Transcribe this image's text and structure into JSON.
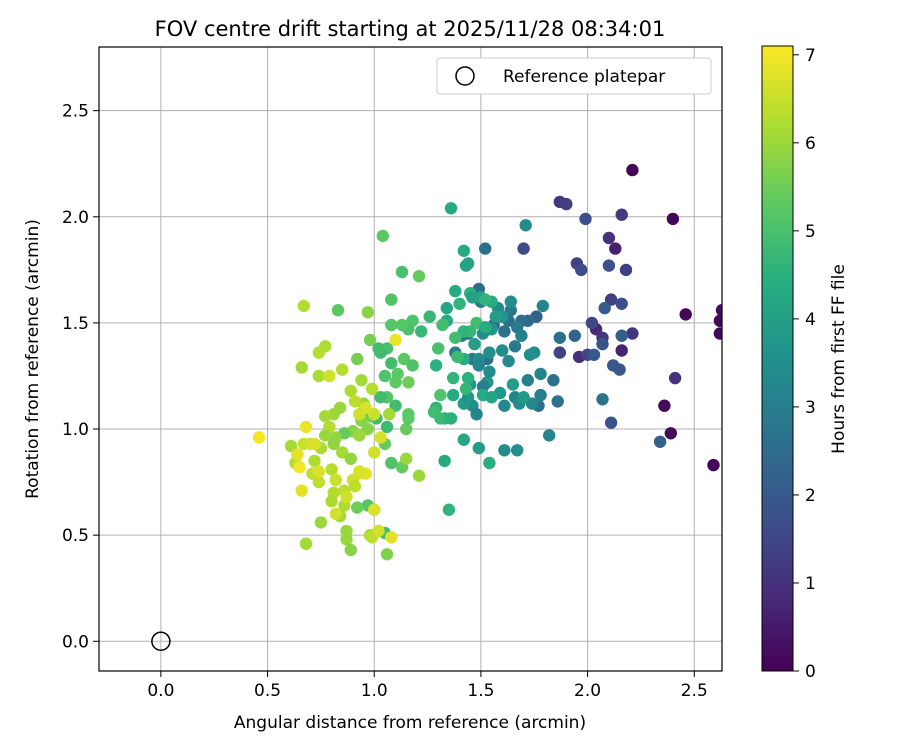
{
  "chart_data": {
    "type": "scatter",
    "title": "FOV centre drift starting at 2025/11/28 08:34:01",
    "xlabel": "Angular distance from reference (arcmin)",
    "ylabel": "Rotation from reference (arcmin)",
    "xlim": [
      -0.29,
      2.63
    ],
    "ylim": [
      -0.14,
      2.8
    ],
    "xticks": [
      "0.0",
      "0.5",
      "1.0",
      "1.5",
      "2.0",
      "2.5"
    ],
    "yticks": [
      "0.0",
      "0.5",
      "1.0",
      "1.5",
      "2.0",
      "2.5"
    ],
    "grid": true,
    "legend": {
      "position": "top-right",
      "entries": [
        "Reference platepar"
      ]
    },
    "colorbar": {
      "label": "Hours from first FF file",
      "colormap": "viridis",
      "range": [
        0,
        7.1
      ],
      "ticks": [
        "0",
        "1",
        "2",
        "3",
        "4",
        "5",
        "6",
        "7"
      ]
    },
    "reference": {
      "x": 0.0,
      "y": 0.0
    },
    "points": [
      [
        2.21,
        2.22,
        0.1
      ],
      [
        2.4,
        1.99,
        0.1
      ],
      [
        2.46,
        1.54,
        0.1
      ],
      [
        2.62,
        1.51,
        0.1
      ],
      [
        2.62,
        1.45,
        0.1
      ],
      [
        2.59,
        0.83,
        0.1
      ],
      [
        2.36,
        1.11,
        0.2
      ],
      [
        2.39,
        0.98,
        0.2
      ],
      [
        2.63,
        1.56,
        0.2
      ],
      [
        2.13,
        1.85,
        0.6
      ],
      [
        2.16,
        1.37,
        0.7
      ],
      [
        2.04,
        1.47,
        0.8
      ],
      [
        1.96,
        1.34,
        0.9
      ],
      [
        2.41,
        1.24,
        1.0
      ],
      [
        2.1,
        1.9,
        1.0
      ],
      [
        1.87,
        2.07,
        1.1
      ],
      [
        2.16,
        2.01,
        1.2
      ],
      [
        2.07,
        1.43,
        1.1
      ],
      [
        2.18,
        1.75,
        1.3
      ],
      [
        2.11,
        1.61,
        1.3
      ],
      [
        1.9,
        2.06,
        1.3
      ],
      [
        1.95,
        1.78,
        1.4
      ],
      [
        1.87,
        1.36,
        1.4
      ],
      [
        2.02,
        1.5,
        1.5
      ],
      [
        2.0,
        1.35,
        1.5
      ],
      [
        1.97,
        1.75,
        1.6
      ],
      [
        1.99,
        1.99,
        1.7
      ],
      [
        2.07,
        1.4,
        1.8
      ],
      [
        2.1,
        1.77,
        1.8
      ],
      [
        2.21,
        1.45,
        1.1
      ],
      [
        2.16,
        1.59,
        1.7
      ],
      [
        2.12,
        1.3,
        1.9
      ],
      [
        2.15,
        1.28,
        1.9
      ],
      [
        2.11,
        1.03,
        1.8
      ],
      [
        2.34,
        0.94,
        2.2
      ],
      [
        2.03,
        1.35,
        2.0
      ],
      [
        2.16,
        1.44,
        2.1
      ],
      [
        2.08,
        1.57,
        2.0
      ],
      [
        1.94,
        1.44,
        2.3
      ],
      [
        1.87,
        1.43,
        2.6
      ],
      [
        1.84,
        1.23,
        2.6
      ],
      [
        1.86,
        1.13,
        2.7
      ],
      [
        1.77,
        1.11,
        2.6
      ],
      [
        1.7,
        1.85,
        1.6
      ],
      [
        1.76,
        1.53,
        2.2
      ],
      [
        1.72,
        1.51,
        2.4
      ],
      [
        1.69,
        1.51,
        2.6
      ],
      [
        2.07,
        1.14,
        2.7
      ],
      [
        1.82,
        0.97,
        3.2
      ],
      [
        1.78,
        1.16,
        3.0
      ],
      [
        1.74,
        1.12,
        3.3
      ],
      [
        1.72,
        1.23,
        3.1
      ],
      [
        1.78,
        1.26,
        3.2
      ],
      [
        1.66,
        1.39,
        2.9
      ],
      [
        1.63,
        1.51,
        2.6
      ],
      [
        1.61,
        1.46,
        2.6
      ],
      [
        1.56,
        1.49,
        2.5
      ],
      [
        1.53,
        1.33,
        2.6
      ],
      [
        1.5,
        1.6,
        2.9
      ],
      [
        1.49,
        1.66,
        2.5
      ],
      [
        1.44,
        1.45,
        2.4
      ],
      [
        1.46,
        1.33,
        2.8
      ],
      [
        1.41,
        1.44,
        2.9
      ],
      [
        1.38,
        1.36,
        3.0
      ],
      [
        1.52,
        1.85,
        2.6
      ],
      [
        1.64,
        1.56,
        2.8
      ],
      [
        1.67,
        1.48,
        2.9
      ],
      [
        1.69,
        1.44,
        3.1
      ],
      [
        1.73,
        1.35,
        3.4
      ],
      [
        1.75,
        1.36,
        3.5
      ],
      [
        1.79,
        1.58,
        3.2
      ],
      [
        1.71,
        1.96,
        3.4
      ],
      [
        1.64,
        1.6,
        3.4
      ],
      [
        1.58,
        1.57,
        3.4
      ],
      [
        1.55,
        1.47,
        3.7
      ],
      [
        1.51,
        1.45,
        3.4
      ],
      [
        1.49,
        1.33,
        3.5
      ],
      [
        1.45,
        1.21,
        3.6
      ],
      [
        1.46,
        1.11,
        3.5
      ],
      [
        1.42,
        1.12,
        3.8
      ],
      [
        1.53,
        1.22,
        3.6
      ],
      [
        1.54,
        1.27,
        3.4
      ],
      [
        1.59,
        1.17,
        3.7
      ],
      [
        1.61,
        1.11,
        3.3
      ],
      [
        1.66,
        1.15,
        3.2
      ],
      [
        1.68,
        1.12,
        3.4
      ],
      [
        1.7,
        1.15,
        3.8
      ],
      [
        1.65,
        1.21,
        3.9
      ],
      [
        1.63,
        1.32,
        3.3
      ],
      [
        1.61,
        0.9,
        3.4
      ],
      [
        1.67,
        0.9,
        3.5
      ],
      [
        1.54,
        1.36,
        3.5
      ],
      [
        1.6,
        1.53,
        3.7
      ],
      [
        1.57,
        1.53,
        3.9
      ],
      [
        1.6,
        1.37,
        3.4
      ],
      [
        1.49,
        1.3,
        3.2
      ],
      [
        1.48,
        1.07,
        3.2
      ],
      [
        1.51,
        1.2,
        3.0
      ],
      [
        1.44,
        1.15,
        3.7
      ],
      [
        1.42,
        0.95,
        4.2
      ],
      [
        1.49,
        0.91,
        3.9
      ],
      [
        1.47,
        1.4,
        3.9
      ],
      [
        1.43,
        1.77,
        4.1
      ],
      [
        1.42,
        1.84,
        4.3
      ],
      [
        1.44,
        1.78,
        4.1
      ],
      [
        1.36,
        2.04,
        4.3
      ],
      [
        1.45,
        1.64,
        4.5
      ],
      [
        1.38,
        1.65,
        4.3
      ],
      [
        1.34,
        1.57,
        4.2
      ],
      [
        1.4,
        1.59,
        4.6
      ],
      [
        1.34,
        1.51,
        4.3
      ],
      [
        1.29,
        1.3,
        4.5
      ],
      [
        1.33,
        1.05,
        4.4
      ],
      [
        1.37,
        1.16,
        4.3
      ],
      [
        1.42,
        1.33,
        4.4
      ],
      [
        1.44,
        1.24,
        4.5
      ],
      [
        1.46,
        1.62,
        4.0
      ],
      [
        1.5,
        1.62,
        4.1
      ],
      [
        1.55,
        1.6,
        4.3
      ],
      [
        1.52,
        1.61,
        4.6
      ],
      [
        1.48,
        1.5,
        4.9
      ],
      [
        1.52,
        1.48,
        4.4
      ],
      [
        1.45,
        1.46,
        4.7
      ],
      [
        1.42,
        1.46,
        4.6
      ],
      [
        1.38,
        1.43,
        4.9
      ],
      [
        1.39,
        1.34,
        4.8
      ],
      [
        1.37,
        1.24,
        4.6
      ],
      [
        1.43,
        1.19,
        4.7
      ],
      [
        1.51,
        1.16,
        4.3
      ],
      [
        1.55,
        1.15,
        4.1
      ],
      [
        1.54,
        0.84,
        4.4
      ],
      [
        1.33,
        0.85,
        4.3
      ],
      [
        1.35,
        0.62,
        4.6
      ],
      [
        1.31,
        1.16,
        5.1
      ],
      [
        1.29,
        1.1,
        4.6
      ],
      [
        1.28,
        1.08,
        4.9
      ],
      [
        1.31,
        1.05,
        4.8
      ],
      [
        1.36,
        1.05,
        4.5
      ],
      [
        1.3,
        1.38,
        5.0
      ],
      [
        1.32,
        1.49,
        4.9
      ],
      [
        1.26,
        1.53,
        4.7
      ],
      [
        1.22,
        1.46,
        4.7
      ],
      [
        1.18,
        1.51,
        5.1
      ],
      [
        1.16,
        1.47,
        5.0
      ],
      [
        1.13,
        1.49,
        5.2
      ],
      [
        1.08,
        1.49,
        5.2
      ],
      [
        1.06,
        1.38,
        5.0
      ],
      [
        1.03,
        1.36,
        4.8
      ],
      [
        1.02,
        1.38,
        4.9
      ],
      [
        1.08,
        1.31,
        4.9
      ],
      [
        1.11,
        1.26,
        5.3
      ],
      [
        1.14,
        1.33,
        5.3
      ],
      [
        1.18,
        1.3,
        5.1
      ],
      [
        1.16,
        1.22,
        5.5
      ],
      [
        1.1,
        1.22,
        5.3
      ],
      [
        1.05,
        1.25,
        5.1
      ],
      [
        1.06,
        1.15,
        5.2
      ],
      [
        1.03,
        1.15,
        4.9
      ],
      [
        1.01,
        1.05,
        4.9
      ],
      [
        1.06,
        1.01,
        4.8
      ],
      [
        1.1,
        1.11,
        4.9
      ],
      [
        1.15,
        1.0,
        5.4
      ],
      [
        1.16,
        1.07,
        5.3
      ],
      [
        1.16,
        1.05,
        5.3
      ],
      [
        1.13,
        0.82,
        5.4
      ],
      [
        1.05,
        0.93,
        5.4
      ],
      [
        1.08,
        0.84,
        5.1
      ],
      [
        1.04,
        1.91,
        5.3
      ],
      [
        1.08,
        1.61,
        5.1
      ],
      [
        1.13,
        1.74,
        5.0
      ],
      [
        1.21,
        1.72,
        5.4
      ],
      [
        0.98,
        1.42,
        5.6
      ],
      [
        0.92,
        1.33,
        5.6
      ],
      [
        0.83,
        1.56,
        5.3
      ],
      [
        0.97,
        1.55,
        5.8
      ],
      [
        0.98,
        1.06,
        5.5
      ],
      [
        0.94,
        1.04,
        5.8
      ],
      [
        0.97,
        0.64,
        5.2
      ],
      [
        1.0,
        0.62,
        4.9
      ],
      [
        1.05,
        0.51,
        4.9
      ],
      [
        1.06,
        0.41,
        5.7
      ],
      [
        1.15,
        0.86,
        6.0
      ],
      [
        1.21,
        0.78,
        6.0
      ],
      [
        1.07,
        1.07,
        6.1
      ],
      [
        0.97,
        1.0,
        5.8
      ],
      [
        0.9,
        0.99,
        5.8
      ],
      [
        0.86,
        0.98,
        5.4
      ],
      [
        0.81,
        0.93,
        5.9
      ],
      [
        0.82,
        0.96,
        5.9
      ],
      [
        0.85,
        0.89,
        6.1
      ],
      [
        0.89,
        0.86,
        5.9
      ],
      [
        0.93,
        0.97,
        6.0
      ],
      [
        0.95,
        1.12,
        6.0
      ],
      [
        0.99,
        1.19,
        6.3
      ],
      [
        0.94,
        1.23,
        6.1
      ],
      [
        0.89,
        1.18,
        6.2
      ],
      [
        0.84,
        1.1,
        6.0
      ],
      [
        0.81,
        1.07,
        6.0
      ],
      [
        0.77,
        1.06,
        6.1
      ],
      [
        0.79,
        1.01,
        6.3
      ],
      [
        0.77,
        0.97,
        6.0
      ],
      [
        0.75,
        0.91,
        6.2
      ],
      [
        0.72,
        0.85,
        6.2
      ],
      [
        0.71,
        0.79,
        6.4
      ],
      [
        0.74,
        0.75,
        6.4
      ],
      [
        0.8,
        0.81,
        6.3
      ],
      [
        0.82,
        0.76,
        6.5
      ],
      [
        0.86,
        0.71,
        6.4
      ],
      [
        0.86,
        0.64,
        6.2
      ],
      [
        0.84,
        0.59,
        6.1
      ],
      [
        0.87,
        0.52,
        6.0
      ],
      [
        0.87,
        0.48,
        6.0
      ],
      [
        0.89,
        0.43,
        5.8
      ],
      [
        0.92,
        0.63,
        5.5
      ],
      [
        0.98,
        0.5,
        6.2
      ],
      [
        0.99,
        0.49,
        6.4
      ],
      [
        1.02,
        0.52,
        6.6
      ],
      [
        1.08,
        0.49,
        6.8
      ],
      [
        1.0,
        0.89,
        6.6
      ],
      [
        1.03,
        0.96,
        6.7
      ],
      [
        1.0,
        1.07,
        6.5
      ],
      [
        0.96,
        1.1,
        6.7
      ],
      [
        0.91,
        1.13,
        6.4
      ],
      [
        0.93,
        0.79,
        6.8
      ],
      [
        0.96,
        0.79,
        6.8
      ],
      [
        0.93,
        0.8,
        6.7
      ],
      [
        0.9,
        0.76,
        6.6
      ],
      [
        0.91,
        0.73,
        6.4
      ],
      [
        0.87,
        0.68,
        6.6
      ],
      [
        0.81,
        0.7,
        6.3
      ],
      [
        0.8,
        0.66,
        6.2
      ],
      [
        0.82,
        0.6,
        6.6
      ],
      [
        0.75,
        0.56,
        6.0
      ],
      [
        0.68,
        0.46,
        6.1
      ],
      [
        0.66,
        0.71,
        6.8
      ],
      [
        0.63,
        0.84,
        6.3
      ],
      [
        0.61,
        0.92,
        6.1
      ],
      [
        0.64,
        0.88,
        6.8
      ],
      [
        0.65,
        0.82,
        7.0
      ],
      [
        0.67,
        0.93,
        6.5
      ],
      [
        0.7,
        0.93,
        6.6
      ],
      [
        0.72,
        0.93,
        6.7
      ],
      [
        0.74,
        0.8,
        6.7
      ],
      [
        0.68,
        1.01,
        6.9
      ],
      [
        0.74,
        1.25,
        6.2
      ],
      [
        0.79,
        1.25,
        6.6
      ],
      [
        0.77,
        1.39,
        6.2
      ],
      [
        0.74,
        1.36,
        6.3
      ],
      [
        0.85,
        1.28,
        6.3
      ],
      [
        0.66,
        1.29,
        6.1
      ],
      [
        0.67,
        1.58,
        6.3
      ],
      [
        1.1,
        1.42,
        6.9
      ],
      [
        0.46,
        0.96,
        7.0
      ],
      [
        1.0,
        0.62,
        6.7
      ],
      [
        0.93,
        1.07,
        6.6
      ]
    ]
  }
}
